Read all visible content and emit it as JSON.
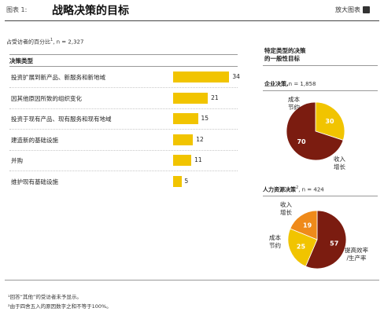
{
  "header": {
    "exhibit_label": "图表 1:",
    "title": "战略决策的目标",
    "enlarge_label": "放大图表"
  },
  "subtitle": {
    "prefix": "占受访者的百分比",
    "sup": "1",
    "n": ", n = 2,327"
  },
  "chart_data": [
    {
      "type": "bar",
      "orientation": "horizontal",
      "column_header": "决策类型",
      "categories": [
        "投资扩展到新产品、新服务和新地域",
        "因其他原因所致的组织变化",
        "投资于现有产品、现有服务和现有地域",
        "建造新的基础设施",
        "并购",
        "维护现有基础设施"
      ],
      "values": [
        34,
        21,
        15,
        12,
        11,
        5
      ],
      "bar_color": "#f1c400"
    },
    {
      "type": "pie",
      "group_heading": "特定类型的决策\n的一般性目标",
      "heading": "企业决策,",
      "heading_sup": "",
      "n": "n = 1,858",
      "slices": [
        {
          "label": "成本\n节约",
          "value": 30,
          "color": "#f1c400"
        },
        {
          "label": "收入\n增长",
          "value": 70,
          "color": "#7b1c10"
        }
      ]
    },
    {
      "type": "pie",
      "heading": "人力资源决策",
      "heading_sup": "2",
      "n": ", n = 424",
      "slices": [
        {
          "label": "提高效率\n/生产率",
          "value": 57,
          "color": "#7b1c10"
        },
        {
          "label": "成本\n节约",
          "value": 25,
          "color": "#f1c400"
        },
        {
          "label": "收入\n增长",
          "value": 19,
          "color": "#ef8a1a"
        }
      ]
    }
  ],
  "footnotes": [
    "¹回答“其他”的受访者未予显示。",
    "²由于四舍五入的原因数字之和不等于100%。"
  ]
}
